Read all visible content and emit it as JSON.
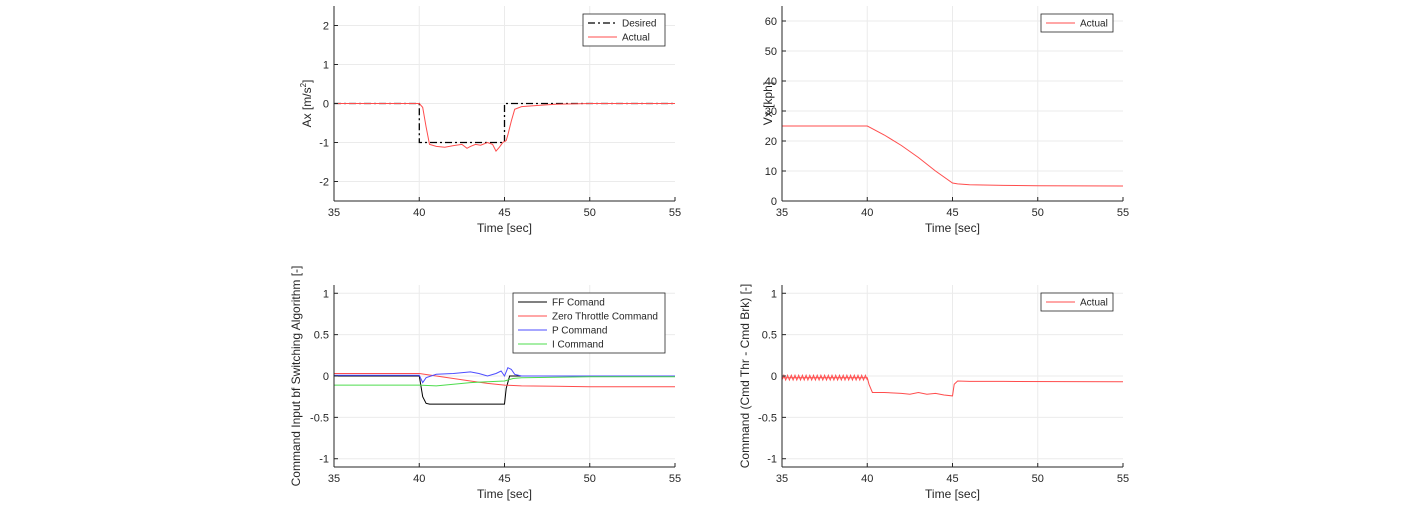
{
  "figure": {
    "grid": true,
    "axis_color": "#262626",
    "grid_color": "#ebebeb"
  },
  "chart_data": [
    {
      "type": "line",
      "xlabel": "Time [sec]",
      "ylabel": "Ax [m/s",
      "ylabel_sup": "2",
      "ylabel_end": "]",
      "xlim": [
        35,
        55
      ],
      "ylim": [
        -2.5,
        2.5
      ],
      "xticks": [
        35,
        40,
        45,
        50,
        55
      ],
      "yticks": [
        -2,
        -1,
        0,
        1,
        2
      ],
      "legend_position": "top-right",
      "series": [
        {
          "name": "Desired",
          "color": "#000000",
          "dash": "dashdot",
          "x": [
            35,
            40,
            40,
            45,
            45,
            55
          ],
          "y": [
            0,
            0,
            -1,
            -1,
            0,
            0
          ]
        },
        {
          "name": "Actual",
          "color": "#ff4d4d",
          "x": [
            35,
            40,
            40.2,
            40.4,
            40.6,
            41,
            41.5,
            42,
            42.5,
            42.8,
            43,
            43.3,
            43.6,
            44,
            44.3,
            44.5,
            44.7,
            44.9,
            45.1,
            45.2,
            45.4,
            45.6,
            46,
            47,
            48,
            50,
            55
          ],
          "y": [
            0,
            0,
            -0.1,
            -0.6,
            -1.05,
            -1.1,
            -1.12,
            -1.08,
            -1.05,
            -1.15,
            -1.1,
            -1.05,
            -1.07,
            -1.0,
            -1.05,
            -1.22,
            -1.12,
            -1.0,
            -0.95,
            -0.8,
            -0.45,
            -0.15,
            -0.08,
            -0.05,
            -0.02,
            0,
            0
          ]
        }
      ]
    },
    {
      "type": "line",
      "xlabel": "Time [sec]",
      "ylabel": "Vx [kph]",
      "xlim": [
        35,
        55
      ],
      "ylim": [
        0,
        65
      ],
      "xticks": [
        35,
        40,
        45,
        50,
        55
      ],
      "yticks": [
        0,
        10,
        20,
        30,
        40,
        50,
        60
      ],
      "legend_position": "top-right",
      "series": [
        {
          "name": "Actual",
          "color": "#ff4d4d",
          "x": [
            35,
            40,
            41,
            42,
            43,
            44,
            45,
            45.3,
            46,
            48,
            50,
            55
          ],
          "y": [
            25,
            25,
            22,
            18.5,
            14.5,
            10,
            6,
            5.7,
            5.4,
            5.2,
            5.1,
            5
          ]
        }
      ]
    },
    {
      "type": "line",
      "xlabel": "Time [sec]",
      "ylabel": "Command Input bf Switching Algorithm [-]",
      "xlim": [
        35,
        55
      ],
      "ylim": [
        -1.1,
        1.1
      ],
      "xticks": [
        35,
        40,
        45,
        50,
        55
      ],
      "yticks": [
        -1,
        -0.5,
        0,
        0.5,
        1
      ],
      "legend_position": "top-right",
      "series": [
        {
          "name": "FF Comand",
          "color": "#000000",
          "x": [
            35,
            40,
            40.2,
            40.4,
            40.6,
            45,
            45.1,
            45.3,
            55
          ],
          "y": [
            0,
            0,
            -0.25,
            -0.33,
            -0.34,
            -0.34,
            -0.15,
            0,
            0
          ]
        },
        {
          "name": "Zero Throttle Command",
          "color": "#ff4d4d",
          "x": [
            35,
            40,
            41,
            42,
            43,
            44,
            45,
            46,
            48,
            50,
            55
          ],
          "y": [
            0.03,
            0.03,
            0,
            -0.03,
            -0.06,
            -0.09,
            -0.11,
            -0.12,
            -0.125,
            -0.13,
            -0.13
          ]
        },
        {
          "name": "P Command",
          "color": "#4d4dff",
          "x": [
            35,
            40,
            40.2,
            40.4,
            41,
            42,
            43,
            43.5,
            44,
            44.5,
            44.8,
            45,
            45.2,
            45.4,
            45.6,
            46,
            48,
            55
          ],
          "y": [
            0.01,
            0.01,
            -0.08,
            -0.02,
            0.02,
            0.03,
            0.05,
            0.03,
            0.0,
            0.03,
            0.06,
            0.0,
            0.1,
            0.08,
            0.02,
            0.0,
            0.0,
            0.0
          ]
        },
        {
          "name": "I Command",
          "color": "#4ddc4d",
          "x": [
            35,
            40,
            41,
            42,
            43,
            44,
            45,
            45.5,
            46,
            48,
            50,
            55
          ],
          "y": [
            -0.11,
            -0.11,
            -0.12,
            -0.1,
            -0.08,
            -0.07,
            -0.06,
            -0.03,
            -0.02,
            -0.015,
            -0.01,
            -0.01
          ]
        }
      ]
    },
    {
      "type": "line",
      "xlabel": "Time [sec]",
      "ylabel": "Command (Cmd Thr - Cmd Brk) [-]",
      "xlim": [
        35,
        55
      ],
      "ylim": [
        -1.1,
        1.1
      ],
      "xticks": [
        35,
        40,
        45,
        50,
        55
      ],
      "yticks": [
        -1,
        -0.5,
        0,
        0.5,
        1
      ],
      "legend_position": "top-right",
      "series": [
        {
          "name": "Actual",
          "color": "#ff4d4d",
          "x": [
            35,
            40,
            40.1,
            40.3,
            41,
            42,
            42.5,
            43,
            43.5,
            44,
            44.5,
            45,
            45.1,
            45.3,
            46,
            48,
            55
          ],
          "y": [
            -0.02,
            -0.02,
            -0.1,
            -0.2,
            -0.2,
            -0.21,
            -0.22,
            -0.2,
            -0.22,
            -0.21,
            -0.23,
            -0.24,
            -0.1,
            -0.06,
            -0.065,
            -0.065,
            -0.07
          ]
        }
      ]
    }
  ]
}
